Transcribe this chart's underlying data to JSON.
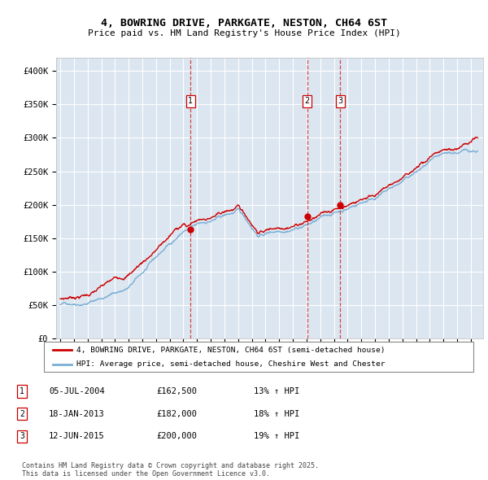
{
  "title_line1": "4, BOWRING DRIVE, PARKGATE, NESTON, CH64 6ST",
  "title_line2": "Price paid vs. HM Land Registry's House Price Index (HPI)",
  "ylim": [
    0,
    420000
  ],
  "yticks": [
    0,
    50000,
    100000,
    150000,
    200000,
    250000,
    300000,
    350000,
    400000
  ],
  "ytick_labels": [
    "£0",
    "£50K",
    "£100K",
    "£150K",
    "£200K",
    "£250K",
    "£300K",
    "£350K",
    "£400K"
  ],
  "plot_bg_color": "#dce6f1",
  "grid_color": "#ffffff",
  "red_line_color": "#cc0000",
  "blue_line_color": "#7bafd4",
  "sale_markers": [
    {
      "label": "1",
      "date": 2004.51,
      "price": 162500
    },
    {
      "label": "2",
      "date": 2013.05,
      "price": 182000
    },
    {
      "label": "3",
      "date": 2015.46,
      "price": 200000
    }
  ],
  "legend_red_label": "4, BOWRING DRIVE, PARKGATE, NESTON, CH64 6ST (semi-detached house)",
  "legend_blue_label": "HPI: Average price, semi-detached house, Cheshire West and Chester",
  "table_rows": [
    {
      "num": "1",
      "date": "05-JUL-2004",
      "price": "£162,500",
      "hpi": "13% ↑ HPI"
    },
    {
      "num": "2",
      "date": "18-JAN-2013",
      "price": "£182,000",
      "hpi": "18% ↑ HPI"
    },
    {
      "num": "3",
      "date": "12-JUN-2015",
      "price": "£200,000",
      "hpi": "19% ↑ HPI"
    }
  ],
  "footer": "Contains HM Land Registry data © Crown copyright and database right 2025.\nThis data is licensed under the Open Government Licence v3.0."
}
